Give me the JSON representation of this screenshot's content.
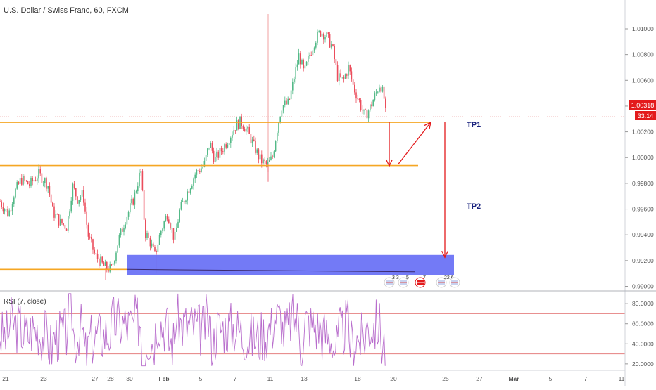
{
  "chart_data": [
    {
      "type": "candlestick",
      "title": "U.S. Dollar / Swiss Franc, 60, FXCM",
      "price_axis_ticks": [
        "1.01000",
        "1.00800",
        "1.00600",
        "1.00400",
        "1.00200",
        "1.00000",
        "0.99800",
        "0.99600",
        "0.99400",
        "0.99200",
        "0.99000"
      ],
      "ylim": [
        0.9897,
        1.0118
      ],
      "last_price": "1.00318",
      "countdown": "33:14",
      "x_ticks": [
        "21",
        "23",
        "27",
        "28",
        "30",
        "Feb",
        "5",
        "7",
        "11",
        "13",
        "18",
        "20",
        "25",
        "27",
        "Mar",
        "5",
        "7",
        "11"
      ],
      "price_path": [
        [
          0,
          0.9966
        ],
        [
          12,
          0.9956
        ],
        [
          20,
          0.9972
        ],
        [
          30,
          0.9983
        ],
        [
          42,
          0.9979
        ],
        [
          55,
          0.9987
        ],
        [
          68,
          0.9979
        ],
        [
          75,
          0.9958
        ],
        [
          85,
          0.995
        ],
        [
          95,
          0.9946
        ],
        [
          103,
          0.9978
        ],
        [
          110,
          0.9968
        ],
        [
          118,
          0.9972
        ],
        [
          125,
          0.994
        ],
        [
          135,
          0.9924
        ],
        [
          148,
          0.9915
        ],
        [
          158,
          0.9913
        ],
        [
          168,
          0.9935
        ],
        [
          178,
          0.9952
        ],
        [
          190,
          0.9968
        ],
        [
          200,
          0.999
        ],
        [
          206,
          0.9942
        ],
        [
          213,
          0.9935
        ],
        [
          220,
          0.9924
        ],
        [
          228,
          0.9942
        ],
        [
          238,
          0.9957
        ],
        [
          248,
          0.9936
        ],
        [
          255,
          0.9958
        ],
        [
          265,
          0.9972
        ],
        [
          278,
          0.9988
        ],
        [
          290,
          0.9994
        ],
        [
          298,
          1.0012
        ],
        [
          305,
          0.9998
        ],
        [
          315,
          1.0006
        ],
        [
          325,
          1.0015
        ],
        [
          335,
          1.0025
        ],
        [
          342,
          1.0028
        ],
        [
          350,
          1.0022
        ],
        [
          360,
          1.001
        ],
        [
          370,
          0.9998
        ],
        [
          380,
          0.9994
        ],
        [
          387,
          1.0
        ],
        [
          393,
          1.002
        ],
        [
          400,
          1.004
        ],
        [
          410,
          1.0042
        ],
        [
          418,
          1.0062
        ],
        [
          425,
          1.008
        ],
        [
          432,
          1.0065
        ],
        [
          440,
          1.008
        ],
        [
          448,
          1.0092
        ],
        [
          456,
          1.0098
        ],
        [
          464,
          1.0094
        ],
        [
          472,
          1.0086
        ],
        [
          480,
          1.0062
        ],
        [
          488,
          1.006
        ],
        [
          495,
          1.007
        ],
        [
          502,
          1.0055
        ],
        [
          510,
          1.0044
        ],
        [
          518,
          1.0032
        ],
        [
          525,
          1.0038
        ],
        [
          533,
          1.0048
        ],
        [
          540,
          1.0058
        ],
        [
          546,
          1.0045
        ],
        [
          548,
          1.0033
        ]
      ],
      "support_lines": [
        {
          "x": [
            0,
            612
          ],
          "y": [
            1.00274,
            1.00274
          ]
        },
        {
          "x": [
            0,
            594
          ],
          "y": [
            0.99938,
            0.99938
          ]
        },
        {
          "x": [
            0,
            180
          ],
          "y": [
            0.99132,
            0.99132
          ]
        }
      ],
      "demand_zone": {
        "x": [
          180,
          645
        ],
        "y": [
          0.99087,
          0.99244
        ]
      },
      "arrows": [
        {
          "x": [
            553,
            553
          ],
          "y": [
            1.00274,
            0.99935
          ]
        },
        {
          "x": [
            566,
            612
          ],
          "y": [
            0.9995,
            1.00274
          ]
        },
        {
          "x": [
            632,
            632
          ],
          "y": [
            1.00274,
            0.99225
          ]
        }
      ],
      "annotations": [
        {
          "text": "TP1",
          "x": 663,
          "y": 1.00236
        },
        {
          "text": "TP2",
          "x": 663,
          "y": 0.99603
        }
      ],
      "event_badges": [
        {
          "label": "3 3",
          "x": 553
        },
        {
          "label": "5",
          "x": 573
        },
        {
          "label": "7",
          "x": 597
        },
        {
          "label": "22 6",
          "x": 627
        },
        {
          "label": "",
          "x": 646
        }
      ],
      "colors": {
        "up": "#53b987",
        "down": "#eb4d5c",
        "support": "#f5a623",
        "zone": "#6b73f5",
        "arrow": "#e31a1c",
        "tp_text": "#1a237e"
      }
    },
    {
      "type": "line",
      "title": "RSI (7, close)",
      "ylim": [
        15,
        92
      ],
      "y_ticks": [
        "80.0000",
        "60.0000",
        "40.0000",
        "20.0000"
      ],
      "levels": [
        70,
        30
      ],
      "colors": {
        "line": "#b86dcc",
        "level": "#e58080"
      }
    }
  ]
}
